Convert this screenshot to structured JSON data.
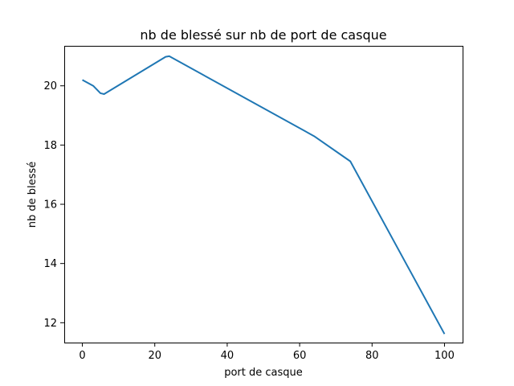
{
  "chart_data": {
    "type": "line",
    "title": "nb de blessé sur nb de port de casque",
    "xlabel": "port de casque",
    "ylabel": "nb de blessé",
    "xlim": [
      -5,
      105
    ],
    "ylim": [
      11.33,
      21.35
    ],
    "xticks": [
      0,
      20,
      40,
      60,
      80,
      100
    ],
    "yticks": [
      12,
      14,
      16,
      18,
      20
    ],
    "xtick_labels": [
      "0",
      "20",
      "40",
      "60",
      "80",
      "100"
    ],
    "ytick_labels": [
      "12",
      "14",
      "16",
      "18",
      "20"
    ],
    "grid": false,
    "series": [
      {
        "color": "#1f77b4",
        "x": [
          0,
          3,
          5,
          6,
          23,
          24,
          64,
          74,
          100
        ],
        "y": [
          20.2,
          20.0,
          19.75,
          19.72,
          20.98,
          21.0,
          18.3,
          17.45,
          11.62
        ]
      }
    ]
  }
}
